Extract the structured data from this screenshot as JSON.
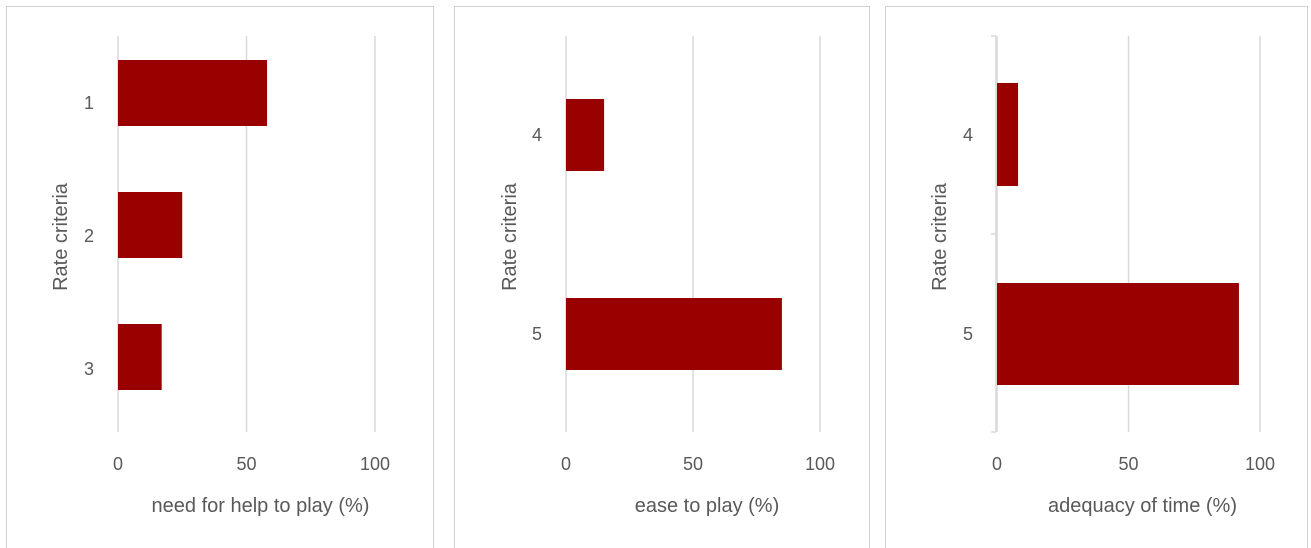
{
  "chart_data": [
    {
      "type": "bar",
      "orientation": "horizontal",
      "categories": [
        "1",
        "2",
        "3"
      ],
      "values": [
        58,
        25,
        17
      ],
      "xlabel": "need for help to play (%)",
      "ylabel": "Rate criteria",
      "xlim": [
        0,
        100
      ],
      "xticks": [
        "0",
        "50",
        "100"
      ],
      "grid": true,
      "color": "#990000"
    },
    {
      "type": "bar",
      "orientation": "horizontal",
      "categories": [
        "4",
        "5"
      ],
      "values": [
        15,
        85
      ],
      "xlabel": "ease to play (%)",
      "ylabel": "Rate criteria",
      "xlim": [
        0,
        100
      ],
      "xticks": [
        "0",
        "50",
        "100"
      ],
      "grid": true,
      "color": "#990000"
    },
    {
      "type": "bar",
      "orientation": "horizontal",
      "categories": [
        "4",
        "5"
      ],
      "values": [
        8,
        92
      ],
      "xlabel": "adequacy of time (%)",
      "ylabel": "Rate criteria",
      "xlim": [
        0,
        100
      ],
      "xticks": [
        "0",
        "50",
        "100"
      ],
      "grid": true,
      "color": "#990000"
    }
  ]
}
